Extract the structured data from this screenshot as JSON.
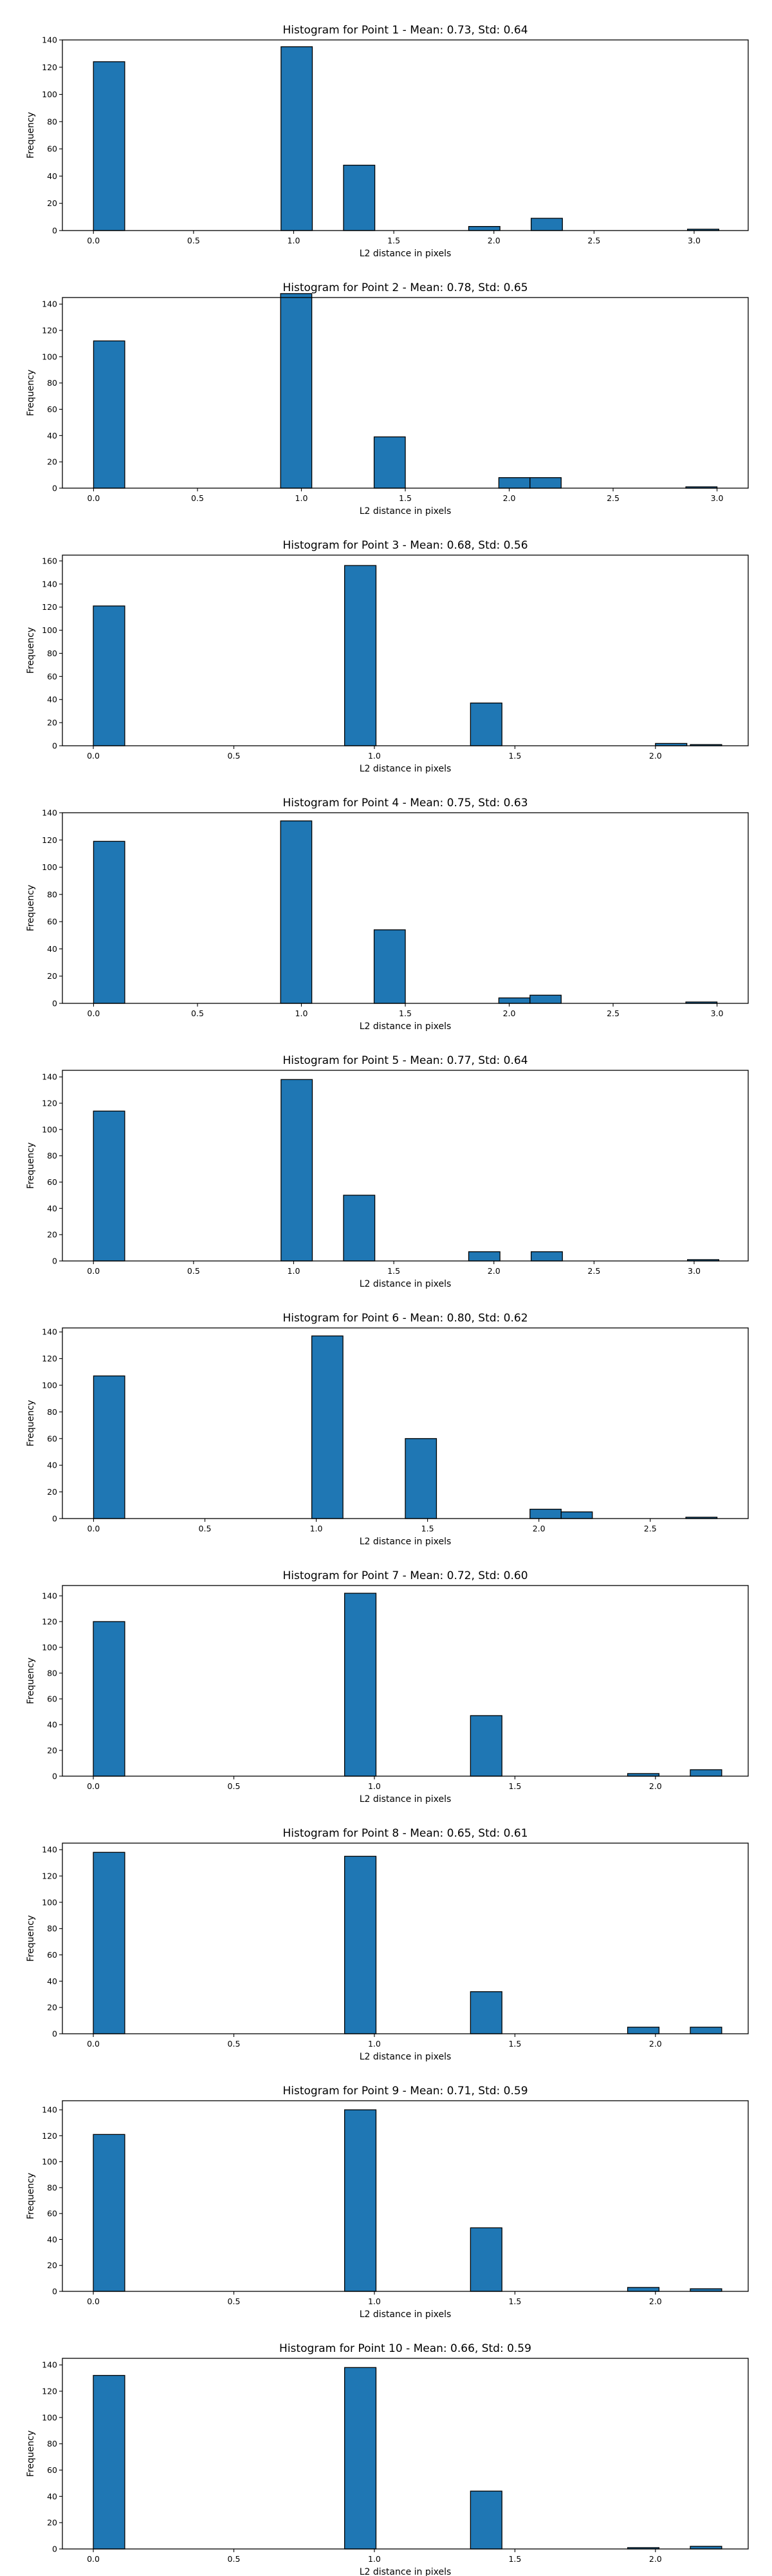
{
  "chart_data": [
    {
      "type": "bar",
      "title": "Histogram for Point 1 - Mean: 0.73, Std: 0.64",
      "xlabel": "L2 distance in pixels",
      "ylabel": "Frequency",
      "xlim": [
        -0.155,
        3.27
      ],
      "ylim": [
        0,
        140
      ],
      "xticks": [
        0.0,
        0.5,
        1.0,
        1.5,
        2.0,
        2.5,
        3.0
      ],
      "xtick_labels": [
        "0.0",
        "0.5",
        "1.0",
        "1.5",
        "2.0",
        "2.5",
        "3.0"
      ],
      "yticks": [
        0,
        20,
        40,
        60,
        80,
        100,
        120,
        140
      ],
      "ytick_labels": [
        "0",
        "20",
        "40",
        "60",
        "80",
        "100",
        "120",
        "140"
      ],
      "bin_width": 0.1562,
      "bins": [
        {
          "x": 0.0,
          "count": 124
        },
        {
          "x": 0.937,
          "count": 135
        },
        {
          "x": 1.249,
          "count": 48
        },
        {
          "x": 1.874,
          "count": 3
        },
        {
          "x": 2.186,
          "count": 9
        },
        {
          "x": 2.967,
          "count": 1
        }
      ]
    },
    {
      "type": "bar",
      "title": "Histogram for Point 2 - Mean: 0.78, Std: 0.65",
      "xlabel": "L2 distance in pixels",
      "ylabel": "Frequency",
      "xlim": [
        -0.15,
        3.15
      ],
      "ylim": [
        0,
        145
      ],
      "xticks": [
        0.0,
        0.5,
        1.0,
        1.5,
        2.0,
        2.5,
        3.0
      ],
      "xtick_labels": [
        "0.0",
        "0.5",
        "1.0",
        "1.5",
        "2.0",
        "2.5",
        "3.0"
      ],
      "yticks": [
        0,
        20,
        40,
        60,
        80,
        100,
        120,
        140
      ],
      "ytick_labels": [
        "0",
        "20",
        "40",
        "60",
        "80",
        "100",
        "120",
        "140"
      ],
      "bin_width": 0.15,
      "bins": [
        {
          "x": 0.0,
          "count": 112
        },
        {
          "x": 0.9,
          "count": 148
        },
        {
          "x": 1.35,
          "count": 39
        },
        {
          "x": 1.95,
          "count": 8
        },
        {
          "x": 2.1,
          "count": 8
        },
        {
          "x": 2.85,
          "count": 1
        }
      ]
    },
    {
      "type": "bar",
      "title": "Histogram for Point 3 - Mean: 0.68, Std: 0.56",
      "xlabel": "L2 distance in pixels",
      "ylabel": "Frequency",
      "xlim": [
        -0.11,
        2.33
      ],
      "ylim": [
        0,
        165
      ],
      "xticks": [
        0.0,
        0.5,
        1.0,
        1.5,
        2.0
      ],
      "xtick_labels": [
        "0.0",
        "0.5",
        "1.0",
        "1.5",
        "2.0"
      ],
      "yticks": [
        0,
        20,
        40,
        60,
        80,
        100,
        120,
        140,
        160
      ],
      "ytick_labels": [
        "0",
        "20",
        "40",
        "60",
        "80",
        "100",
        "120",
        "140",
        "160"
      ],
      "bin_width": 0.1118,
      "bins": [
        {
          "x": 0.0,
          "count": 121
        },
        {
          "x": 0.894,
          "count": 156
        },
        {
          "x": 1.342,
          "count": 37
        },
        {
          "x": 2.0,
          "count": 2
        },
        {
          "x": 2.124,
          "count": 1
        }
      ]
    },
    {
      "type": "bar",
      "title": "Histogram for Point 4 - Mean: 0.75, Std: 0.63",
      "xlabel": "L2 distance in pixels",
      "ylabel": "Frequency",
      "xlim": [
        -0.15,
        3.15
      ],
      "ylim": [
        0,
        140
      ],
      "xticks": [
        0.0,
        0.5,
        1.0,
        1.5,
        2.0,
        2.5,
        3.0
      ],
      "xtick_labels": [
        "0.0",
        "0.5",
        "1.0",
        "1.5",
        "2.0",
        "2.5",
        "3.0"
      ],
      "yticks": [
        0,
        20,
        40,
        60,
        80,
        100,
        120,
        140
      ],
      "ytick_labels": [
        "0",
        "20",
        "40",
        "60",
        "80",
        "100",
        "120",
        "140"
      ],
      "bin_width": 0.15,
      "bins": [
        {
          "x": 0.0,
          "count": 119
        },
        {
          "x": 0.9,
          "count": 134
        },
        {
          "x": 1.35,
          "count": 54
        },
        {
          "x": 1.95,
          "count": 4
        },
        {
          "x": 2.1,
          "count": 6
        },
        {
          "x": 2.85,
          "count": 1
        }
      ]
    },
    {
      "type": "bar",
      "title": "Histogram for Point 5 - Mean: 0.77, Std: 0.64",
      "xlabel": "L2 distance in pixels",
      "ylabel": "Frequency",
      "xlim": [
        -0.155,
        3.27
      ],
      "ylim": [
        0,
        145
      ],
      "xticks": [
        0.0,
        0.5,
        1.0,
        1.5,
        2.0,
        2.5,
        3.0
      ],
      "xtick_labels": [
        "0.0",
        "0.5",
        "1.0",
        "1.5",
        "2.0",
        "2.5",
        "3.0"
      ],
      "yticks": [
        0,
        20,
        40,
        60,
        80,
        100,
        120,
        140
      ],
      "ytick_labels": [
        "0",
        "20",
        "40",
        "60",
        "80",
        "100",
        "120",
        "140"
      ],
      "bin_width": 0.1562,
      "bins": [
        {
          "x": 0.0,
          "count": 114
        },
        {
          "x": 0.937,
          "count": 138
        },
        {
          "x": 1.249,
          "count": 50
        },
        {
          "x": 1.874,
          "count": 7
        },
        {
          "x": 2.186,
          "count": 7
        },
        {
          "x": 2.967,
          "count": 1
        }
      ]
    },
    {
      "type": "bar",
      "title": "Histogram for Point 6 - Mean: 0.80, Std: 0.62",
      "xlabel": "L2 distance in pixels",
      "ylabel": "Frequency",
      "xlim": [
        -0.14,
        2.94
      ],
      "ylim": [
        0,
        143
      ],
      "xticks": [
        0.0,
        0.5,
        1.0,
        1.5,
        2.0,
        2.5
      ],
      "xtick_labels": [
        "0.0",
        "0.5",
        "1.0",
        "1.5",
        "2.0",
        "2.5"
      ],
      "yticks": [
        0,
        20,
        40,
        60,
        80,
        100,
        120,
        140
      ],
      "ytick_labels": [
        "0",
        "20",
        "40",
        "60",
        "80",
        "100",
        "120",
        "140"
      ],
      "bin_width": 0.14,
      "bins": [
        {
          "x": 0.0,
          "count": 107
        },
        {
          "x": 0.98,
          "count": 137
        },
        {
          "x": 1.4,
          "count": 60
        },
        {
          "x": 1.96,
          "count": 7
        },
        {
          "x": 2.1,
          "count": 5
        },
        {
          "x": 2.66,
          "count": 1
        }
      ]
    },
    {
      "type": "bar",
      "title": "Histogram for Point 7 - Mean: 0.72, Std: 0.60",
      "xlabel": "L2 distance in pixels",
      "ylabel": "Frequency",
      "xlim": [
        -0.11,
        2.33
      ],
      "ylim": [
        0,
        148
      ],
      "xticks": [
        0.0,
        0.5,
        1.0,
        1.5,
        2.0
      ],
      "xtick_labels": [
        "0.0",
        "0.5",
        "1.0",
        "1.5",
        "2.0"
      ],
      "yticks": [
        0,
        20,
        40,
        60,
        80,
        100,
        120,
        140
      ],
      "ytick_labels": [
        "0",
        "20",
        "40",
        "60",
        "80",
        "100",
        "120",
        "140"
      ],
      "bin_width": 0.1118,
      "bins": [
        {
          "x": 0.0,
          "count": 120
        },
        {
          "x": 0.894,
          "count": 142
        },
        {
          "x": 1.342,
          "count": 47
        },
        {
          "x": 1.901,
          "count": 2
        },
        {
          "x": 2.124,
          "count": 5
        }
      ]
    },
    {
      "type": "bar",
      "title": "Histogram for Point 8 - Mean: 0.65, Std: 0.61",
      "xlabel": "L2 distance in pixels",
      "ylabel": "Frequency",
      "xlim": [
        -0.11,
        2.33
      ],
      "ylim": [
        0,
        145
      ],
      "xticks": [
        0.0,
        0.5,
        1.0,
        1.5,
        2.0
      ],
      "xtick_labels": [
        "0.0",
        "0.5",
        "1.0",
        "1.5",
        "2.0"
      ],
      "yticks": [
        0,
        20,
        40,
        60,
        80,
        100,
        120,
        140
      ],
      "ytick_labels": [
        "0",
        "20",
        "40",
        "60",
        "80",
        "100",
        "120",
        "140"
      ],
      "bin_width": 0.1118,
      "bins": [
        {
          "x": 0.0,
          "count": 138
        },
        {
          "x": 0.894,
          "count": 135
        },
        {
          "x": 1.342,
          "count": 32
        },
        {
          "x": 1.901,
          "count": 5
        },
        {
          "x": 2.124,
          "count": 5
        }
      ]
    },
    {
      "type": "bar",
      "title": "Histogram for Point 9 - Mean: 0.71, Std: 0.59",
      "xlabel": "L2 distance in pixels",
      "ylabel": "Frequency",
      "xlim": [
        -0.11,
        2.33
      ],
      "ylim": [
        0,
        147
      ],
      "xticks": [
        0.0,
        0.5,
        1.0,
        1.5,
        2.0
      ],
      "xtick_labels": [
        "0.0",
        "0.5",
        "1.0",
        "1.5",
        "2.0"
      ],
      "yticks": [
        0,
        20,
        40,
        60,
        80,
        100,
        120,
        140
      ],
      "ytick_labels": [
        "0",
        "20",
        "40",
        "60",
        "80",
        "100",
        "120",
        "140"
      ],
      "bin_width": 0.1118,
      "bins": [
        {
          "x": 0.0,
          "count": 121
        },
        {
          "x": 0.894,
          "count": 140
        },
        {
          "x": 1.342,
          "count": 49
        },
        {
          "x": 1.901,
          "count": 3
        },
        {
          "x": 2.124,
          "count": 2
        }
      ]
    },
    {
      "type": "bar",
      "title": "Histogram for Point 10 - Mean: 0.66, Std: 0.59",
      "xlabel": "L2 distance in pixels",
      "ylabel": "Frequency",
      "xlim": [
        -0.11,
        2.33
      ],
      "ylim": [
        0,
        145
      ],
      "xticks": [
        0.0,
        0.5,
        1.0,
        1.5,
        2.0
      ],
      "xtick_labels": [
        "0.0",
        "0.5",
        "1.0",
        "1.5",
        "2.0"
      ],
      "yticks": [
        0,
        20,
        40,
        60,
        80,
        100,
        120,
        140
      ],
      "ytick_labels": [
        "0",
        "20",
        "40",
        "60",
        "80",
        "100",
        "120",
        "140"
      ],
      "bin_width": 0.1118,
      "bins": [
        {
          "x": 0.0,
          "count": 132
        },
        {
          "x": 0.894,
          "count": 138
        },
        {
          "x": 1.342,
          "count": 44
        },
        {
          "x": 1.901,
          "count": 1
        },
        {
          "x": 2.124,
          "count": 2
        }
      ]
    }
  ],
  "colors": {
    "bar_fill": "#1f77b4",
    "bar_edge": "#000000",
    "background": "#ffffff"
  }
}
